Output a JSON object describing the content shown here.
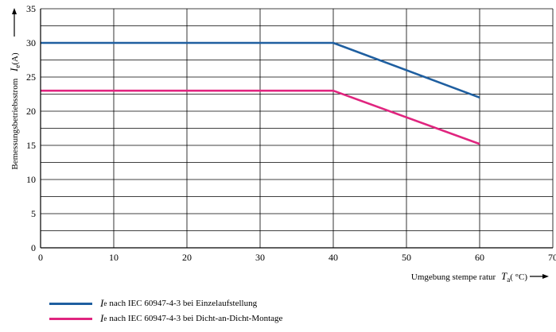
{
  "chart_data": {
    "type": "line",
    "x": [
      0,
      40,
      60
    ],
    "xlim": [
      0,
      70
    ],
    "ylim": [
      0,
      35
    ],
    "xticks": [
      0,
      10,
      20,
      30,
      40,
      50,
      60,
      70
    ],
    "yticks": [
      0,
      5,
      10,
      15,
      20,
      25,
      30,
      35
    ],
    "y_minor_step": 2.5,
    "grid": true,
    "legend_position": "bottom-left",
    "ylabel": {
      "symbol": "I",
      "subscript": "e",
      "unit": "(A)",
      "text": "Bemessungsbetriebsstrom"
    },
    "xlabel": {
      "text": "Umgebung stempe ratur",
      "symbol": "T",
      "subscript": "a",
      "unit": "( °C)"
    },
    "series": [
      {
        "legend_symbol": "I",
        "legend_subscript": "e",
        "legend_text": "nach IEC 60947-4-3 bei Einzelaufstellung",
        "color": "#1f5fa0",
        "values": [
          30,
          30,
          22
        ]
      },
      {
        "legend_symbol": "I",
        "legend_subscript": "e",
        "legend_text": "nach IEC 60947-4-3 bei Dicht-an-Dicht-Montage",
        "color": "#e0257f",
        "values": [
          23,
          23,
          15.2
        ]
      }
    ]
  }
}
